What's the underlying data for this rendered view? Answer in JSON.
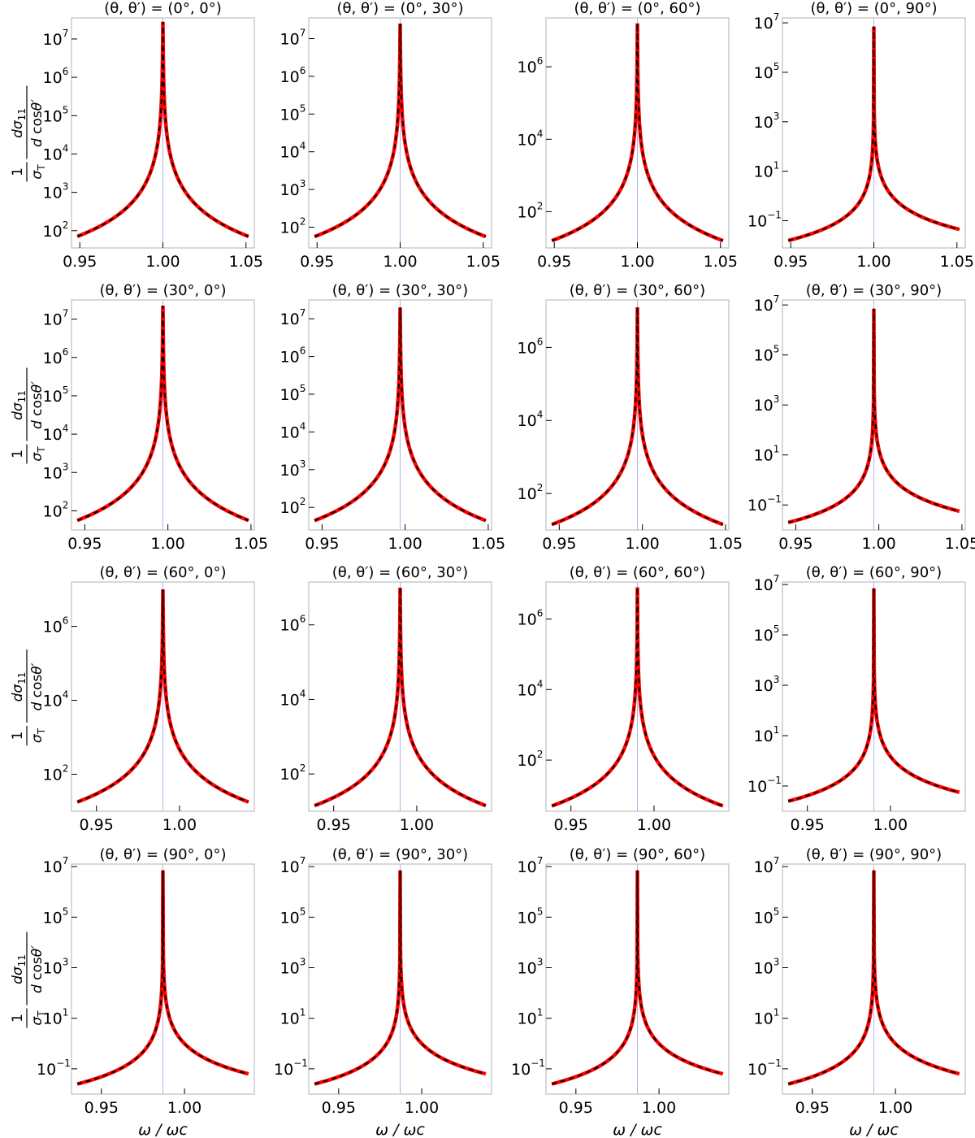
{
  "figure": {
    "ylabel_text": "1/σT dσ11/dcosθ′",
    "xlabel": "ω / ωc",
    "colors": {
      "curve_solid": "#ff0000",
      "curve_dashed": "#000000",
      "resonance_line": "#b3b3e6",
      "frame": "#bdbdbd"
    }
  },
  "chart_data": [
    {
      "type": "line",
      "title": "(θ, θ′) = (0°, 0°)",
      "xlim": [
        0.945,
        1.055
      ],
      "ylim": [
        1.55,
        7.55
      ],
      "yscale": "log",
      "peak": 1.0,
      "peak_logy": 7.45,
      "left_logy": 1.85,
      "right_logy": 1.85,
      "xticks": [
        0.95,
        1.0,
        1.05
      ],
      "xtick_labels": [
        "0.95",
        "1.00",
        "1.05"
      ],
      "ytick_exponents": [
        2,
        3,
        4,
        5,
        6,
        7
      ],
      "series": [
        {
          "style": "red-solid"
        },
        {
          "style": "black-dashed"
        }
      ]
    },
    {
      "type": "line",
      "title": "(θ, θ′) = (0°, 30°)",
      "xlim": [
        0.945,
        1.055
      ],
      "ylim": [
        1.45,
        7.55
      ],
      "yscale": "log",
      "peak": 1.0,
      "peak_logy": 7.4,
      "left_logy": 1.75,
      "right_logy": 1.75,
      "xticks": [
        0.95,
        1.0,
        1.05
      ],
      "xtick_labels": [
        "0.95",
        "1.00",
        "1.05"
      ],
      "ytick_exponents": [
        2,
        3,
        4,
        5,
        6,
        7
      ],
      "series": [
        {
          "style": "red-solid"
        },
        {
          "style": "black-dashed"
        }
      ]
    },
    {
      "type": "line",
      "title": "(θ, θ′) = (0°, 60°)",
      "xlim": [
        0.945,
        1.055
      ],
      "ylim": [
        1.0,
        7.35
      ],
      "yscale": "log",
      "peak": 1.0,
      "peak_logy": 7.2,
      "left_logy": 1.2,
      "right_logy": 1.2,
      "xticks": [
        0.95,
        1.0,
        1.05
      ],
      "xtick_labels": [
        "0.95",
        "1.00",
        "1.05"
      ],
      "ytick_exponents": [
        2,
        4,
        6
      ],
      "series": [
        {
          "style": "red-solid"
        },
        {
          "style": "black-dashed"
        }
      ]
    },
    {
      "type": "line",
      "title": "(θ, θ′) = (0°, 90°)",
      "xlim": [
        0.945,
        1.055
      ],
      "ylim": [
        -2.1,
        7.2
      ],
      "yscale": "log",
      "peak": 1.0,
      "peak_logy": 6.85,
      "left_logy": -1.8,
      "right_logy": -1.35,
      "xticks": [
        0.95,
        1.0,
        1.05
      ],
      "xtick_labels": [
        "0.95",
        "1.00",
        "1.05"
      ],
      "ytick_exponents": [
        -1,
        1,
        3,
        5,
        7
      ],
      "series": [
        {
          "style": "red-solid"
        },
        {
          "style": "black-dashed"
        }
      ]
    },
    {
      "type": "line",
      "title": "(θ, θ′) = (30°, 0°)",
      "xlim": [
        0.942,
        1.052
      ],
      "ylim": [
        1.5,
        7.5
      ],
      "yscale": "log",
      "peak": 0.997,
      "peak_logy": 7.35,
      "left_logy": 1.75,
      "right_logy": 1.75,
      "xticks": [
        0.95,
        1.0,
        1.05
      ],
      "xtick_labels": [
        "0.95",
        "1.00",
        "1.05"
      ],
      "ytick_exponents": [
        2,
        3,
        4,
        5,
        6,
        7
      ],
      "series": [
        {
          "style": "red-solid"
        },
        {
          "style": "black-dashed"
        }
      ]
    },
    {
      "type": "line",
      "title": "(θ, θ′) = (30°, 30°)",
      "xlim": [
        0.942,
        1.052
      ],
      "ylim": [
        1.4,
        7.5
      ],
      "yscale": "log",
      "peak": 0.997,
      "peak_logy": 7.3,
      "left_logy": 1.65,
      "right_logy": 1.65,
      "xticks": [
        0.95,
        1.0,
        1.05
      ],
      "xtick_labels": [
        "0.95",
        "1.00",
        "1.05"
      ],
      "ytick_exponents": [
        2,
        3,
        4,
        5,
        6,
        7
      ],
      "series": [
        {
          "style": "red-solid"
        },
        {
          "style": "black-dashed"
        }
      ]
    },
    {
      "type": "line",
      "title": "(θ, θ′) = (30°, 60°)",
      "xlim": [
        0.942,
        1.052
      ],
      "ylim": [
        1.0,
        7.3
      ],
      "yscale": "log",
      "peak": 0.997,
      "peak_logy": 7.1,
      "left_logy": 1.15,
      "right_logy": 1.15,
      "xticks": [
        0.95,
        1.0,
        1.05
      ],
      "xtick_labels": [
        "0.95",
        "1.00",
        "1.05"
      ],
      "ytick_exponents": [
        2,
        4,
        6
      ],
      "series": [
        {
          "style": "red-solid"
        },
        {
          "style": "black-dashed"
        }
      ]
    },
    {
      "type": "line",
      "title": "(θ, θ′) = (30°, 90°)",
      "xlim": [
        0.942,
        1.052
      ],
      "ylim": [
        -2.0,
        7.2
      ],
      "yscale": "log",
      "peak": 0.997,
      "peak_logy": 6.85,
      "left_logy": -1.7,
      "right_logy": -1.25,
      "xticks": [
        0.95,
        1.0,
        1.05
      ],
      "xtick_labels": [
        "0.95",
        "1.00",
        "1.05"
      ],
      "ytick_exponents": [
        -1,
        1,
        3,
        5,
        7
      ],
      "series": [
        {
          "style": "red-solid"
        },
        {
          "style": "black-dashed"
        }
      ]
    },
    {
      "type": "line",
      "title": "(θ, θ′) = (60°, 0°)",
      "xlim": [
        0.935,
        1.045
      ],
      "ylim": [
        1.0,
        7.2
      ],
      "yscale": "log",
      "peak": 0.99,
      "peak_logy": 7.0,
      "left_logy": 1.25,
      "right_logy": 1.25,
      "xticks": [
        0.95,
        1.0
      ],
      "xtick_labels": [
        "0.95",
        "1.00"
      ],
      "ytick_exponents": [
        2,
        4,
        6
      ],
      "series": [
        {
          "style": "red-solid"
        },
        {
          "style": "black-dashed"
        }
      ]
    },
    {
      "type": "line",
      "title": "(θ, θ′) = (60°, 30°)",
      "xlim": [
        0.935,
        1.045
      ],
      "ylim": [
        1.0,
        7.15
      ],
      "yscale": "log",
      "peak": 0.99,
      "peak_logy": 7.0,
      "left_logy": 1.15,
      "right_logy": 1.15,
      "xticks": [
        0.95,
        1.0
      ],
      "xtick_labels": [
        "0.95",
        "1.00"
      ],
      "ytick_exponents": [
        2,
        4,
        6
      ],
      "series": [
        {
          "style": "red-solid"
        },
        {
          "style": "black-dashed"
        }
      ]
    },
    {
      "type": "line",
      "title": "(θ, θ′) = (60°, 60°)",
      "xlim": [
        0.935,
        1.045
      ],
      "ylim": [
        0.55,
        7.05
      ],
      "yscale": "log",
      "peak": 0.99,
      "peak_logy": 6.9,
      "left_logy": 0.7,
      "right_logy": 0.7,
      "xticks": [
        0.95,
        1.0
      ],
      "xtick_labels": [
        "0.95",
        "1.00"
      ],
      "ytick_exponents": [
        2,
        4,
        6
      ],
      "series": [
        {
          "style": "red-solid"
        },
        {
          "style": "black-dashed"
        }
      ]
    },
    {
      "type": "line",
      "title": "(θ, θ′) = (60°, 90°)",
      "xlim": [
        0.935,
        1.045
      ],
      "ylim": [
        -2.0,
        7.1
      ],
      "yscale": "log",
      "peak": 0.99,
      "peak_logy": 6.85,
      "left_logy": -1.6,
      "right_logy": -1.25,
      "xticks": [
        0.95,
        1.0
      ],
      "xtick_labels": [
        "0.95",
        "1.00"
      ],
      "ytick_exponents": [
        -1,
        1,
        3,
        5,
        7
      ],
      "series": [
        {
          "style": "red-solid"
        },
        {
          "style": "black-dashed"
        }
      ]
    },
    {
      "type": "line",
      "title": "(θ, θ′) = (90°, 0°)",
      "xlim": [
        0.932,
        1.042
      ],
      "ylim": [
        -2.0,
        7.1
      ],
      "yscale": "log",
      "peak": 0.987,
      "peak_logy": 6.85,
      "left_logy": -1.6,
      "right_logy": -1.2,
      "xticks": [
        0.95,
        1.0
      ],
      "xtick_labels": [
        "0.95",
        "1.00"
      ],
      "ytick_exponents": [
        -1,
        1,
        3,
        5,
        7
      ],
      "series": [
        {
          "style": "red-solid"
        },
        {
          "style": "black-dashed"
        }
      ]
    },
    {
      "type": "line",
      "title": "(θ, θ′) = (90°, 30°)",
      "xlim": [
        0.932,
        1.042
      ],
      "ylim": [
        -2.0,
        7.1
      ],
      "yscale": "log",
      "peak": 0.987,
      "peak_logy": 6.85,
      "left_logy": -1.6,
      "right_logy": -1.2,
      "xticks": [
        0.95,
        1.0
      ],
      "xtick_labels": [
        "0.95",
        "1.00"
      ],
      "ytick_exponents": [
        -1,
        1,
        3,
        5,
        7
      ],
      "series": [
        {
          "style": "red-solid"
        },
        {
          "style": "black-dashed"
        }
      ]
    },
    {
      "type": "line",
      "title": "(θ, θ′) = (90°, 60°)",
      "xlim": [
        0.932,
        1.042
      ],
      "ylim": [
        -2.0,
        7.1
      ],
      "yscale": "log",
      "peak": 0.987,
      "peak_logy": 6.85,
      "left_logy": -1.6,
      "right_logy": -1.2,
      "xticks": [
        0.95,
        1.0
      ],
      "xtick_labels": [
        "0.95",
        "1.00"
      ],
      "ytick_exponents": [
        -1,
        1,
        3,
        5,
        7
      ],
      "series": [
        {
          "style": "red-solid"
        },
        {
          "style": "black-dashed"
        }
      ]
    },
    {
      "type": "line",
      "title": "(θ, θ′) = (90°, 90°)",
      "xlim": [
        0.932,
        1.042
      ],
      "ylim": [
        -2.0,
        7.1
      ],
      "yscale": "log",
      "peak": 0.987,
      "peak_logy": 6.85,
      "left_logy": -1.6,
      "right_logy": -1.2,
      "xticks": [
        0.95,
        1.0
      ],
      "xtick_labels": [
        "0.95",
        "1.00"
      ],
      "ytick_exponents": [
        -1,
        1,
        3,
        5,
        7
      ],
      "series": [
        {
          "style": "red-solid"
        },
        {
          "style": "black-dashed"
        }
      ]
    }
  ]
}
